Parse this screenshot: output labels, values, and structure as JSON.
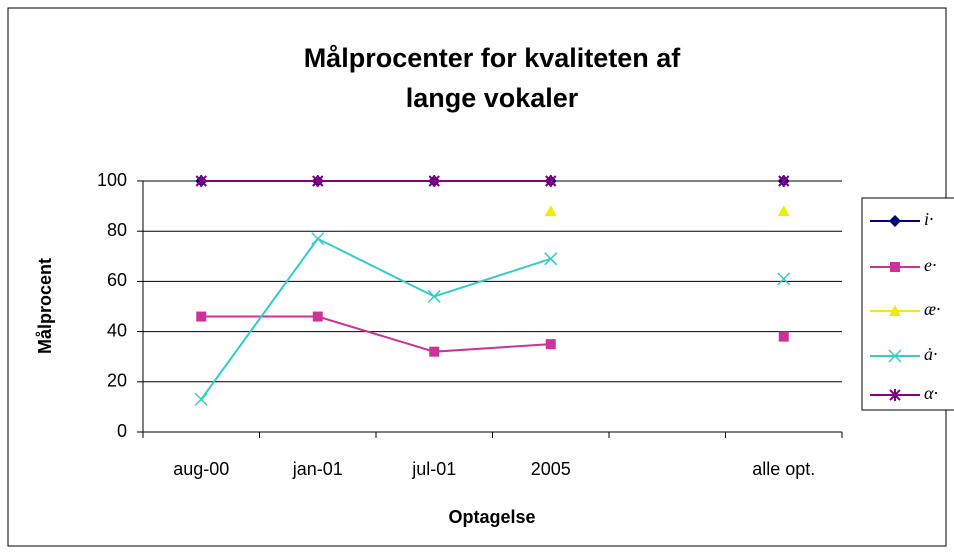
{
  "chart_data": {
    "type": "line",
    "title": [
      "Målprocenter for kvaliteten af",
      "lange vokaler"
    ],
    "y_label": "Målprocent",
    "x_label": "Optagelse",
    "categories": [
      "aug-00",
      "jan-01",
      "jul-01",
      "2005",
      null,
      "alle opt."
    ],
    "series": [
      {
        "name": "i·",
        "color": "#000080",
        "marker": "diamond",
        "values": [
          100,
          100,
          100,
          100,
          null,
          100
        ]
      },
      {
        "name": "e·",
        "color": "#cc3399",
        "marker": "square",
        "values": [
          46,
          46,
          32,
          35,
          null,
          38
        ]
      },
      {
        "name": "æ·",
        "color": "#eeee00",
        "marker": "triangle",
        "values": [
          null,
          null,
          null,
          88,
          null,
          88
        ]
      },
      {
        "name": "ȧ·",
        "color": "#33cccc",
        "marker": "x",
        "values": [
          13,
          77,
          54,
          69,
          null,
          61
        ]
      },
      {
        "name": "α·",
        "color": "#800080",
        "marker": "star",
        "values": [
          100,
          100,
          100,
          100,
          null,
          100
        ]
      }
    ],
    "ylim": [
      0,
      100
    ],
    "yticks": [
      0,
      20,
      40,
      60,
      80,
      100
    ],
    "grid": true,
    "legend": "right"
  }
}
